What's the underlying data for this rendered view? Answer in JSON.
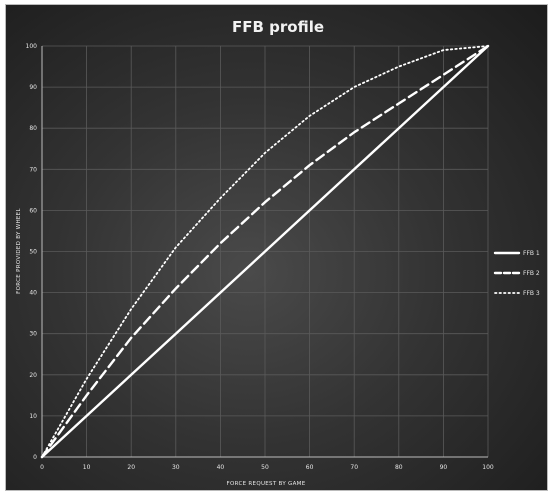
{
  "chart_data": {
    "type": "line",
    "title": "FFB profile",
    "xlabel": "FORCE REQUEST BY GAME",
    "ylabel": "FORCE PROVIDED BY WHEEL",
    "xlim": [
      0,
      100
    ],
    "ylim": [
      0,
      100
    ],
    "xticks": [
      0,
      10,
      20,
      30,
      40,
      50,
      60,
      70,
      80,
      90,
      100
    ],
    "yticks": [
      0,
      10,
      20,
      30,
      40,
      50,
      60,
      70,
      80,
      90,
      100
    ],
    "grid": true,
    "legend_position": "right",
    "x": [
      0,
      10,
      20,
      30,
      40,
      50,
      60,
      70,
      80,
      90,
      100
    ],
    "series": [
      {
        "name": "FFB 1",
        "style": "solid",
        "values": [
          0,
          10,
          20,
          30,
          40,
          50,
          60,
          70,
          80,
          90,
          100
        ]
      },
      {
        "name": "FFB 2",
        "style": "dashed",
        "values": [
          0,
          15,
          29,
          41,
          52,
          62,
          71,
          79,
          86,
          93,
          100
        ]
      },
      {
        "name": "FFB 3",
        "style": "dotted",
        "values": [
          0,
          19,
          36,
          51,
          63,
          74,
          83,
          90,
          95,
          99,
          100
        ]
      }
    ],
    "colors": {
      "line": "#ffffff",
      "grid": "#5a5a5a",
      "text": "#e6e6e6"
    }
  }
}
